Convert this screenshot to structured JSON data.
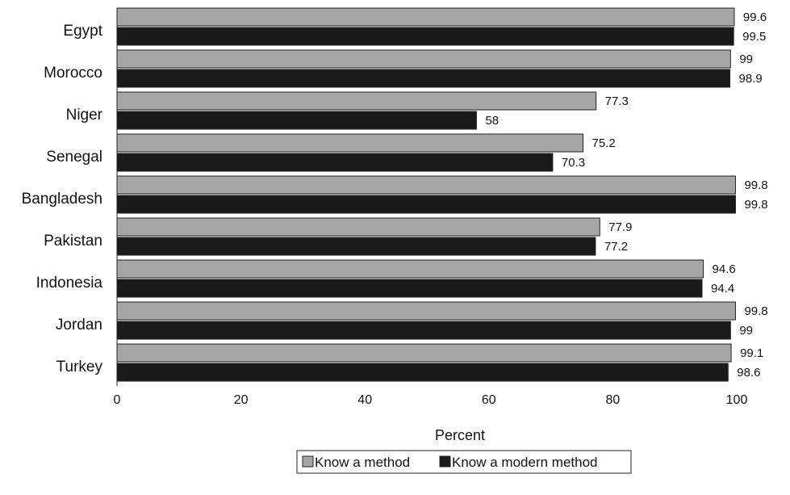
{
  "chart_data": {
    "type": "bar",
    "orientation": "horizontal",
    "categories": [
      "Egypt",
      "Morocco",
      "Niger",
      "Senegal",
      "Bangladesh",
      "Pakistan",
      "Indonesia",
      "Jordan",
      "Turkey"
    ],
    "series": [
      {
        "name": "Know a method",
        "values": [
          99.6,
          99,
          77.3,
          75.2,
          99.8,
          77.9,
          94.6,
          99.8,
          99.1
        ],
        "color": "#a6a6a6"
      },
      {
        "name": "Know a modern method",
        "values": [
          99.5,
          98.9,
          58,
          70.3,
          99.8,
          77.2,
          94.4,
          99,
          98.6
        ],
        "color": "#1a1a1a"
      }
    ],
    "value_labels": [
      [
        "99.6",
        "99",
        "77.3",
        "75.2",
        "99.8",
        "77.9",
        "94.6",
        "99.8",
        "99.1"
      ],
      [
        "99.5",
        "98.9",
        "58",
        "70.3",
        "99.8",
        "77.2",
        "94.4",
        "99",
        "98.6"
      ]
    ],
    "xlabel": "Percent",
    "ylabel": "",
    "title": "",
    "xlim": [
      0,
      100
    ],
    "x_ticks": [
      0,
      20,
      40,
      60,
      80,
      100
    ],
    "x_tick_labels": [
      "0",
      "20",
      "40",
      "60",
      "80",
      "100"
    ],
    "grid": false,
    "legend_placement": "bottom-center"
  }
}
